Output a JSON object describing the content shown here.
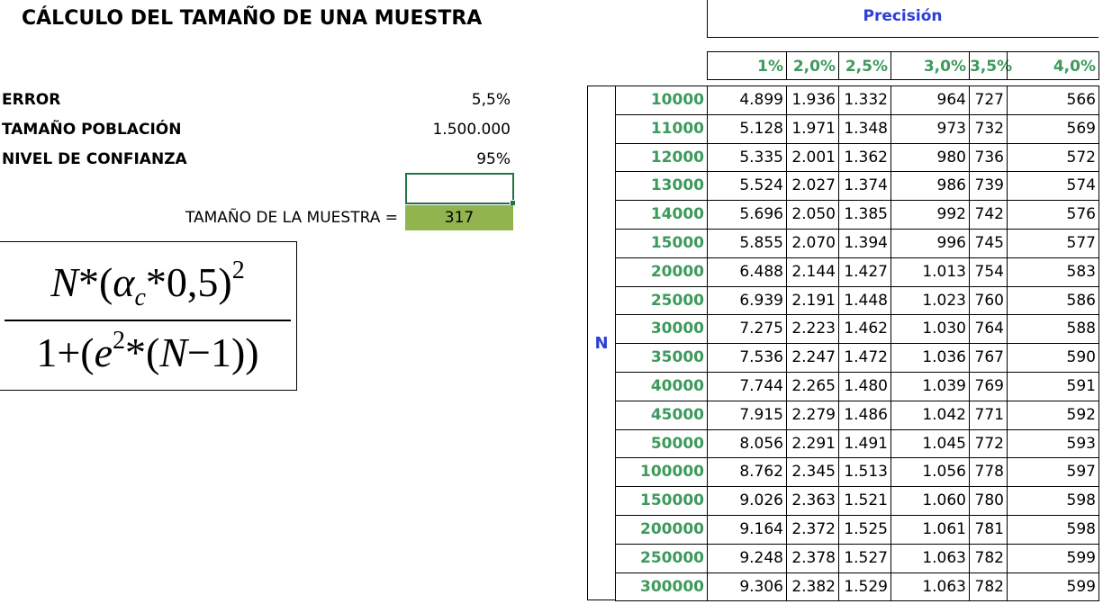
{
  "title": "CÁLCULO DEL TAMAÑO DE UNA MUESTRA",
  "params": [
    {
      "label": "ERROR",
      "value": "5,5%"
    },
    {
      "label": "TAMAÑO POBLACIÓN",
      "value": "1.500.000"
    },
    {
      "label": "NIVEL DE CONFIANZA",
      "value": "95%"
    }
  ],
  "result": {
    "label": "TAMAÑO DE LA MUESTRA =",
    "value": "317"
  },
  "formula": {
    "num_a": "N",
    "num_b": "*(",
    "alpha": "α",
    "sub": "c",
    "num_c": "*0,5)",
    "num_exp": "2",
    "den_a": "1+(",
    "den_e": "e",
    "den_exp": "2",
    "den_b": "*(",
    "den_n": "N",
    "den_c": "−1))"
  },
  "table": {
    "group_header": "Precisión",
    "row_group": "N",
    "columns": [
      "1%",
      "2,0%",
      "2,5%",
      "3,0%",
      "3,5%",
      "4,0%"
    ],
    "rows": [
      [
        "10000",
        "4.899",
        "1.936",
        "1.332",
        "964",
        "727",
        "566"
      ],
      [
        "11000",
        "5.128",
        "1.971",
        "1.348",
        "973",
        "732",
        "569"
      ],
      [
        "12000",
        "5.335",
        "2.001",
        "1.362",
        "980",
        "736",
        "572"
      ],
      [
        "13000",
        "5.524",
        "2.027",
        "1.374",
        "986",
        "739",
        "574"
      ],
      [
        "14000",
        "5.696",
        "2.050",
        "1.385",
        "992",
        "742",
        "576"
      ],
      [
        "15000",
        "5.855",
        "2.070",
        "1.394",
        "996",
        "745",
        "577"
      ],
      [
        "20000",
        "6.488",
        "2.144",
        "1.427",
        "1.013",
        "754",
        "583"
      ],
      [
        "25000",
        "6.939",
        "2.191",
        "1.448",
        "1.023",
        "760",
        "586"
      ],
      [
        "30000",
        "7.275",
        "2.223",
        "1.462",
        "1.030",
        "764",
        "588"
      ],
      [
        "35000",
        "7.536",
        "2.247",
        "1.472",
        "1.036",
        "767",
        "590"
      ],
      [
        "40000",
        "7.744",
        "2.265",
        "1.480",
        "1.039",
        "769",
        "591"
      ],
      [
        "45000",
        "7.915",
        "2.279",
        "1.486",
        "1.042",
        "771",
        "592"
      ],
      [
        "50000",
        "8.056",
        "2.291",
        "1.491",
        "1.045",
        "772",
        "593"
      ],
      [
        "100000",
        "8.762",
        "2.345",
        "1.513",
        "1.056",
        "778",
        "597"
      ],
      [
        "150000",
        "9.026",
        "2.363",
        "1.521",
        "1.060",
        "780",
        "598"
      ],
      [
        "200000",
        "9.164",
        "2.372",
        "1.525",
        "1.061",
        "781",
        "598"
      ],
      [
        "250000",
        "9.248",
        "2.378",
        "1.527",
        "1.063",
        "782",
        "599"
      ],
      [
        "300000",
        "9.306",
        "2.382",
        "1.529",
        "1.063",
        "782",
        "599"
      ]
    ]
  }
}
